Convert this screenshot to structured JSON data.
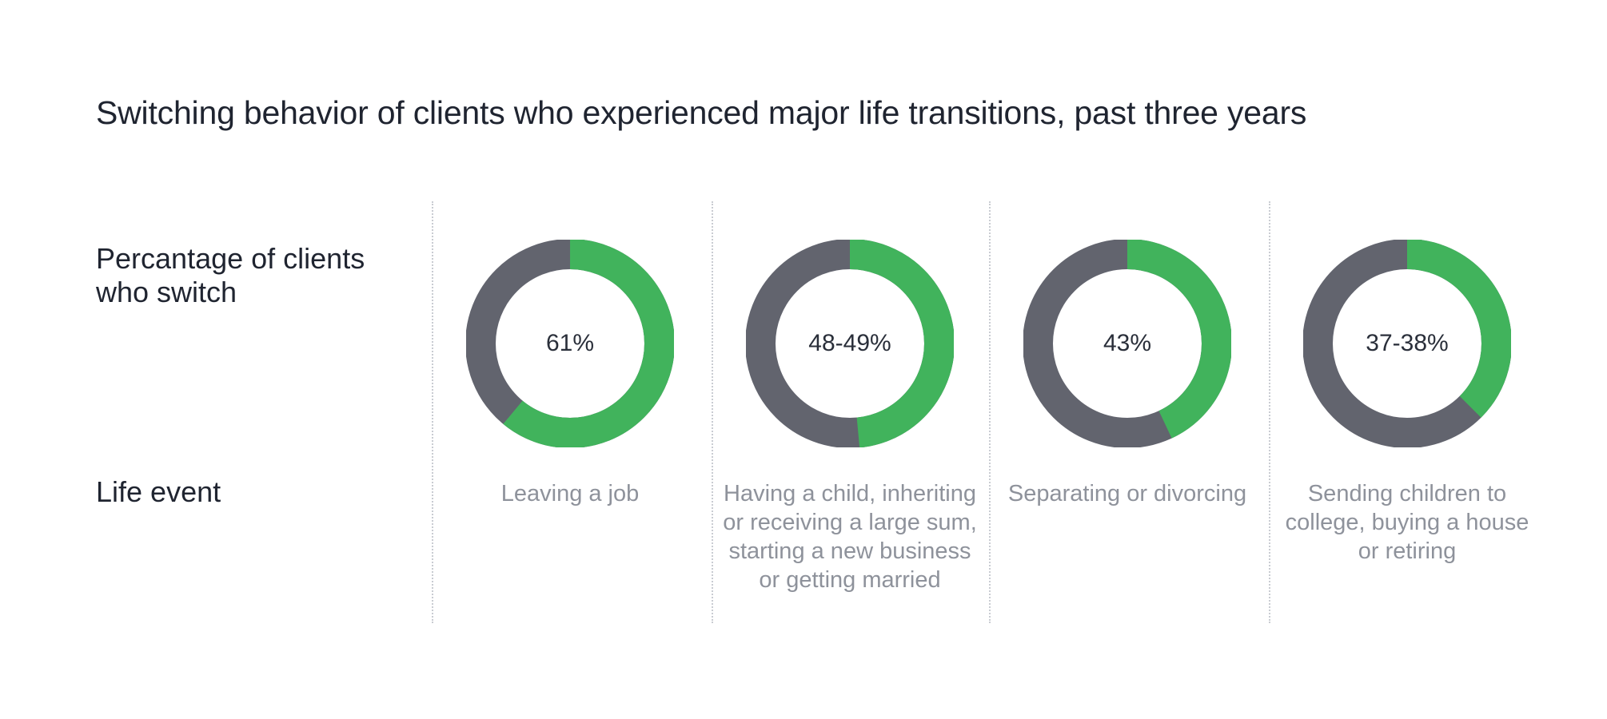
{
  "title": "Switching behavior of clients who experienced major life transitions, past three years",
  "row_labels": {
    "percentage": "Percantage of clients who switch",
    "event": "Life event"
  },
  "colors": {
    "switch": "#41b35c",
    "remain": "#62646e",
    "divider": "#c9ccd2"
  },
  "chart_data": {
    "type": "pie",
    "variant": "donut",
    "title": "Switching behavior of clients who experienced major life transitions, past three years",
    "categories": [
      "Leaving a job",
      "Having a child, inheriting or receiving a large sum, starting a new business or getting married",
      "Separating or divorcing",
      "Sending children to college, buying a house or retiring"
    ],
    "series": [
      {
        "values": [
          61,
          48.5,
          43,
          37.5
        ]
      }
    ],
    "value_labels": [
      "61%",
      "48-49%",
      "43%",
      "37-38%"
    ],
    "unit": "%",
    "legend": "none"
  }
}
